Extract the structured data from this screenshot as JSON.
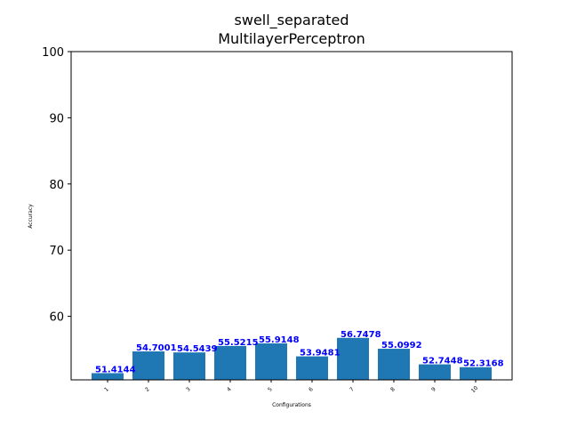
{
  "chart_data": {
    "type": "bar",
    "title": "swell_separated",
    "subtitle": "MultilayerPerceptron",
    "xlabel": "Configurations",
    "ylabel": "Accuracy",
    "categories": [
      "1",
      "2",
      "3",
      "4",
      "5",
      "6",
      "7",
      "8",
      "9",
      "10"
    ],
    "values": [
      51.4144,
      54.7001,
      54.5439,
      55.5215,
      55.9148,
      53.9481,
      56.7478,
      55.0992,
      52.7448,
      52.3168
    ],
    "value_labels": [
      "51.4144",
      "54.7001",
      "54.5439",
      "55.5215",
      "55.9148",
      "53.9481",
      "56.7478",
      "55.0992",
      "52.7448",
      "52.3168"
    ],
    "ylim": [
      50.4,
      100
    ],
    "yticks": [
      60,
      70,
      80,
      90,
      100
    ],
    "ytick_labels": [
      "60",
      "70",
      "80",
      "90",
      "100"
    ],
    "grid": false,
    "bar_color": "#1f77b4",
    "label_color": "#0000ff"
  }
}
